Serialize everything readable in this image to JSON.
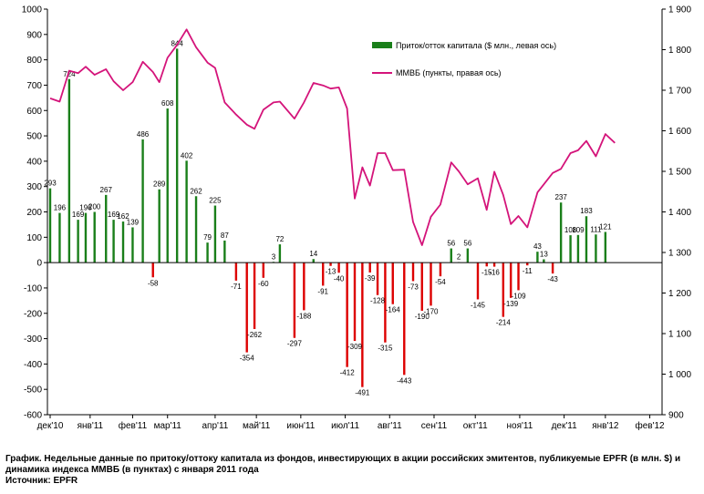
{
  "chart_data": {
    "type": "bar+line",
    "legend": {
      "placement": "top-right",
      "items": [
        {
          "label": "Приток/отток капитала ($ млн., левая ось)",
          "color": "#1a7f1a",
          "kind": "bar"
        },
        {
          "label": "ММВБ (пункты, правая ось)",
          "color": "#d4147a",
          "kind": "line"
        }
      ]
    },
    "left_axis": {
      "min": -600,
      "max": 1000,
      "step": 100,
      "ticks": [
        "1000",
        "900",
        "800",
        "700",
        "600",
        "500",
        "400",
        "300",
        "200",
        "100",
        "0",
        "-100",
        "-200",
        "-300",
        "-400",
        "-500",
        "-600"
      ]
    },
    "right_axis": {
      "min": 900,
      "max": 1900,
      "step": 100,
      "ticks": [
        "1 900",
        "1 800",
        "1 700",
        "1 600",
        "1 500",
        "1 400",
        "1 300",
        "1 200",
        "1 100",
        "1 000",
        "900"
      ]
    },
    "x_axis": {
      "labels": [
        "дек'10",
        "янв'11",
        "фев'11",
        "мар'11",
        "апр'11",
        "май'11",
        "июн'11",
        "июл'11",
        "авг'11",
        "сен'11",
        "окт'11",
        "ноя'11",
        "дек'11",
        "янв'12",
        "фев'12"
      ],
      "label_weeks": [
        0,
        6.3,
        13,
        18.5,
        26,
        32.5,
        39.5,
        46.5,
        53.5,
        60.5,
        67,
        74,
        81,
        87.5,
        94.5
      ],
      "week_count": 97
    },
    "bars": {
      "name": "Приток/отток капитала ($ млн., левая ось)",
      "color_positive": "#1a7f1a",
      "color_negative": "#dd0000",
      "values": [
        293,
        196,
        724,
        169,
        196,
        200,
        267,
        169,
        162,
        139,
        486,
        -58,
        289,
        608,
        844,
        402,
        262,
        79,
        225,
        87,
        -71,
        -354,
        -262,
        -60,
        3,
        72,
        -297,
        -188,
        14,
        -91,
        -13,
        -40,
        -412,
        -309,
        -491,
        -39,
        -128,
        -315,
        -164,
        -443,
        -73,
        -190,
        -170,
        -54,
        56,
        2,
        56,
        -145,
        -15,
        -16,
        -214,
        -139,
        -109,
        -11,
        43,
        13,
        -43,
        237,
        108,
        109,
        183,
        111,
        121
      ],
      "weeks": [
        0,
        1.5,
        3,
        4.4,
        5.6,
        7,
        8.8,
        10,
        11.5,
        13,
        14.6,
        16.2,
        17.2,
        18.5,
        20,
        21.5,
        23,
        24.8,
        26,
        27.5,
        29.3,
        31,
        32.2,
        33.6,
        35.2,
        36.2,
        38.5,
        40,
        41.5,
        43,
        44.2,
        45.5,
        46.8,
        48,
        49.2,
        50.4,
        51.6,
        52.8,
        54,
        55.8,
        57.2,
        58.6,
        60,
        61.5,
        63.2,
        64.4,
        65.8,
        67.4,
        68.8,
        70,
        71.4,
        72.6,
        73.8,
        75.2,
        76.8,
        77.8,
        79.2,
        80.5,
        82,
        83.2,
        84.5,
        86,
        87.5
      ],
      "labels": [
        "293",
        "196",
        "724",
        "169",
        "196",
        "200",
        "267",
        "169",
        "162",
        "139",
        "486",
        "-58",
        "289",
        "608",
        "844",
        "402",
        "262",
        "79",
        "225",
        "87",
        "-71",
        "-354",
        "-262",
        "-60",
        "3",
        "72",
        "-297",
        "-188",
        "14",
        "-91",
        "-13",
        "-40",
        "-412",
        "-309",
        "-491",
        "-39",
        "-128",
        "-315",
        "-164",
        "-443",
        "-73",
        "-190",
        "-170",
        "-54",
        "56",
        "2",
        "56",
        "-145",
        "-15",
        "-16",
        "-214",
        "-139",
        "-109",
        "-11",
        "43",
        "13",
        "-43",
        "237",
        "108",
        "109",
        "183",
        "111",
        "121"
      ]
    },
    "line": {
      "name": "ММВБ (пункты, правая ось)",
      "color": "#d4147a",
      "values": [
        1680,
        1672,
        1748,
        1742,
        1758,
        1738,
        1752,
        1722,
        1700,
        1720,
        1770,
        1745,
        1720,
        1780,
        1812,
        1850,
        1806,
        1768,
        1755,
        1670,
        1640,
        1615,
        1605,
        1652,
        1670,
        1672,
        1630,
        1670,
        1718,
        1712,
        1704,
        1707,
        1655,
        1433,
        1510,
        1465,
        1545,
        1545,
        1503,
        1504,
        1375,
        1318,
        1388,
        1418,
        1522,
        1500,
        1468,
        1483,
        1405,
        1499,
        1442,
        1370,
        1390,
        1362,
        1448,
        1468,
        1496,
        1506,
        1545,
        1552,
        1575,
        1537,
        1592,
        1570
      ],
      "weeks": [
        0,
        1.5,
        3,
        4.4,
        5.6,
        7,
        8.8,
        10,
        11.5,
        13,
        14.6,
        16.2,
        17.2,
        18.5,
        20,
        21.5,
        23,
        24.8,
        26,
        27.5,
        29.3,
        31,
        32.2,
        33.6,
        35.2,
        36.2,
        38.5,
        40,
        41.5,
        43,
        44.2,
        45.5,
        46.8,
        48,
        49.2,
        50.4,
        51.6,
        52.8,
        54,
        55.8,
        57.2,
        58.6,
        60,
        61.5,
        63.2,
        64.4,
        65.8,
        67.4,
        68.8,
        70,
        71.4,
        72.6,
        73.8,
        75.2,
        76.8,
        77.8,
        79.2,
        80.5,
        82,
        83.2,
        84.5,
        86,
        87.5,
        89
      ]
    },
    "grid": false
  },
  "caption": {
    "line1": "График. Недельные данные по притоку/оттоку капитала из фондов, инвестирующих в акции российских эмитентов, публикуемые EPFR (в млн. $) и",
    "line2": "динамика индекса ММВБ (в пунктах) с января 2011 года",
    "line3": "Источник: EPFR"
  }
}
